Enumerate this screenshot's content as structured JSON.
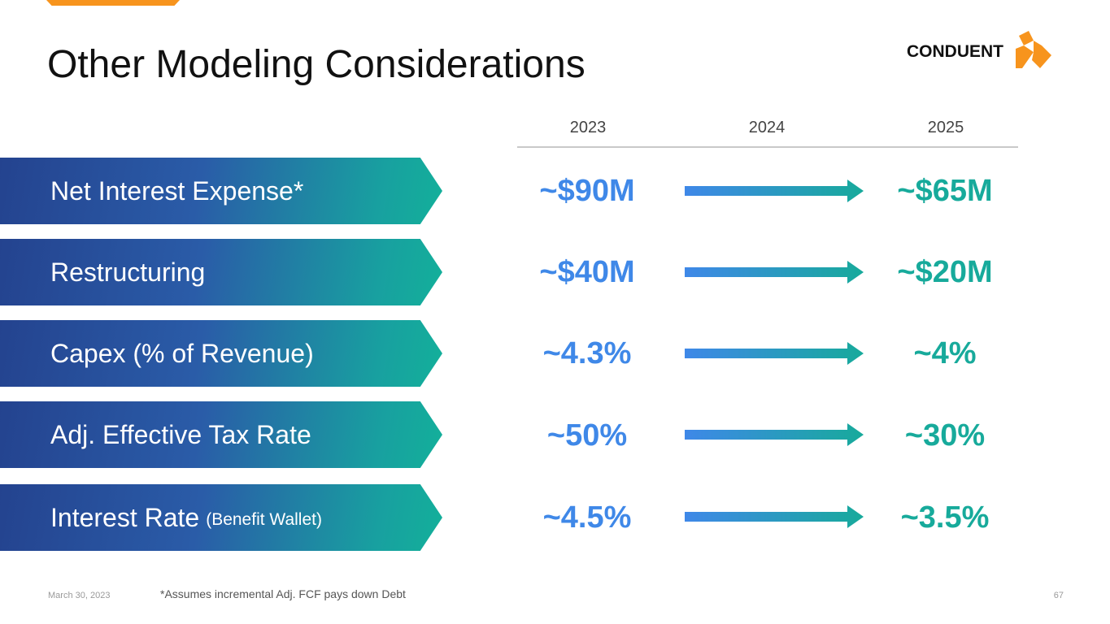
{
  "slide": {
    "title": "Other Modeling Considerations",
    "logo_text": "CONDUENT",
    "years": [
      "2023",
      "2024",
      "2025"
    ],
    "rows": [
      {
        "label": "Net Interest Expense*",
        "sub": "",
        "value_2023": "~$90M",
        "value_2025": "~$65M"
      },
      {
        "label": "Restructuring",
        "sub": "",
        "value_2023": "~$40M",
        "value_2025": "~$20M"
      },
      {
        "label": "Capex (% of Revenue)",
        "sub": "",
        "value_2023": "~4.3%",
        "value_2025": "~4%"
      },
      {
        "label": "Adj. Effective Tax Rate",
        "sub": "",
        "value_2023": "~50%",
        "value_2025": "~30%"
      },
      {
        "label": "Interest Rate",
        "sub": "(Benefit Wallet)",
        "value_2023": "~4.5%",
        "value_2025": "~3.5%"
      }
    ],
    "footnote": "*Assumes incremental Adj. FCF pays down Debt",
    "date": "March 30, 2023",
    "page_number": "67"
  },
  "colors": {
    "accent_orange": "#f7941d",
    "value_blue": "#3f88e8",
    "value_teal": "#17aa9b"
  }
}
